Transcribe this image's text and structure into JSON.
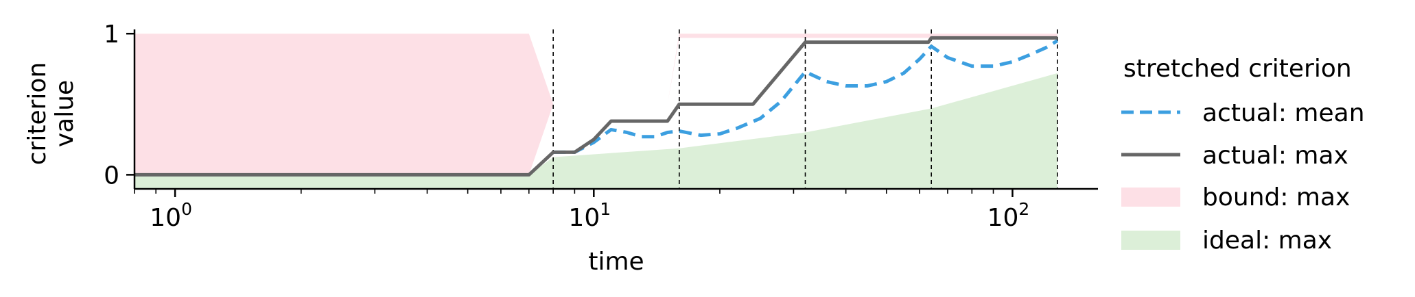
{
  "chart_data": {
    "type": "line",
    "title": "",
    "xlabel": "time",
    "ylabel": "criterion\nvalue",
    "xscale": "log",
    "xlim": [
      0.8,
      160
    ],
    "ylim": [
      -0.1,
      1.03
    ],
    "xticks": [
      {
        "value": 1,
        "base": "10",
        "exp": "0"
      },
      {
        "value": 10,
        "base": "10",
        "exp": "1"
      },
      {
        "value": 100,
        "base": "10",
        "exp": "2"
      }
    ],
    "yticks": [
      {
        "value": 0,
        "label": "0"
      },
      {
        "value": 1,
        "label": "1"
      }
    ],
    "grid": false,
    "legend_position": "right",
    "legend_title": "stretched criterion",
    "vlines": [
      8,
      16,
      32,
      64,
      128
    ],
    "series": [
      {
        "name": "actual: mean",
        "style": "dashed",
        "color": "#3c9fe0",
        "x": [
          8,
          9,
          10,
          11,
          12,
          13,
          14,
          15,
          16,
          18,
          20,
          22,
          25,
          28,
          32,
          36,
          40,
          45,
          50,
          55,
          60,
          64,
          70,
          80,
          90,
          100,
          110,
          120,
          128
        ],
        "y": [
          0.16,
          0.16,
          0.23,
          0.32,
          0.3,
          0.27,
          0.27,
          0.3,
          0.31,
          0.28,
          0.29,
          0.33,
          0.4,
          0.52,
          0.73,
          0.66,
          0.63,
          0.63,
          0.66,
          0.72,
          0.82,
          0.91,
          0.83,
          0.77,
          0.77,
          0.8,
          0.85,
          0.9,
          0.95
        ]
      },
      {
        "name": "actual: max",
        "style": "solid",
        "color": "#666666",
        "x": [
          0.8,
          7,
          8,
          9,
          10,
          11,
          15,
          16,
          24,
          32,
          63,
          64,
          128
        ],
        "y": [
          0,
          0,
          0.16,
          0.16,
          0.25,
          0.38,
          0.38,
          0.5,
          0.5,
          0.94,
          0.94,
          0.97,
          0.97
        ]
      }
    ],
    "areas": [
      {
        "name": "bound: max",
        "color": "#fde0e6",
        "x": [
          0.8,
          7,
          8,
          15,
          16,
          128
        ],
        "y": [
          1,
          1,
          0.5,
          0.5,
          1,
          1
        ]
      },
      {
        "name": "ideal: max",
        "color": "#dcefd8",
        "x": [
          0.8,
          7,
          8,
          16,
          32,
          64,
          128
        ],
        "y": [
          0,
          0,
          0.125,
          0.1875,
          0.3,
          0.47,
          0.72
        ]
      }
    ]
  }
}
